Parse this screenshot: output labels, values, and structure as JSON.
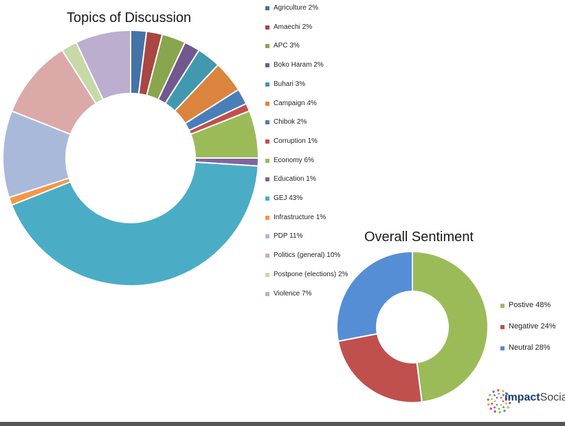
{
  "chart_data": [
    {
      "type": "pie",
      "donut": true,
      "title": "Topics of Discussion",
      "legend": "right",
      "categories": [
        "Agriculture",
        "Amaechi",
        "APC",
        "Boko Haram",
        "Buhari",
        "Campaign",
        "Chibok",
        "Corruption",
        "Economy",
        "Education",
        "GEJ",
        "Infrastructure",
        "PDP",
        "Politics (general)",
        "Postpone (elections)",
        "Violence"
      ],
      "values": [
        2,
        2,
        3,
        2,
        3,
        4,
        2,
        1,
        6,
        1,
        43,
        1,
        11,
        10,
        2,
        7
      ],
      "labels": [
        "Agriculture 2%",
        "Amaechi 2%",
        "APC 3%",
        "Boko Haram 2%",
        "Buhari 3%",
        "Campaign 4%",
        "Chibok 2%",
        "Corruption 1%",
        "Economy 6%",
        "Education 1%",
        "GEJ 43%",
        "Infrastructure 1%",
        "PDP 11%",
        "Politics (general) 10%",
        "Postpone (elections) 2%",
        "Violence 7%"
      ],
      "colors": [
        "#4572A7",
        "#AA4643",
        "#89A54E",
        "#71588F",
        "#4198AF",
        "#DB843D",
        "#4A7EBB",
        "#C0504D",
        "#9BBB59",
        "#8064A2",
        "#4BACC6",
        "#F79646",
        "#A9B9D9",
        "#DBA9A8",
        "#C6D9A7",
        "#BBAECF"
      ]
    },
    {
      "type": "pie",
      "donut": true,
      "title": "Overall Sentiment",
      "legend": "right",
      "categories": [
        "Postive",
        "Negative",
        "Neutral"
      ],
      "values": [
        48,
        24,
        28
      ],
      "labels": [
        "Postive 48%",
        "Negative 24%",
        "Neutral 28%"
      ],
      "colors": [
        "#9BBB59",
        "#C0504D",
        "#558ED5"
      ]
    }
  ],
  "brand": {
    "name_bold": "impact",
    "name_rest": "Socia",
    "icon": "dotted-circle-icon"
  }
}
